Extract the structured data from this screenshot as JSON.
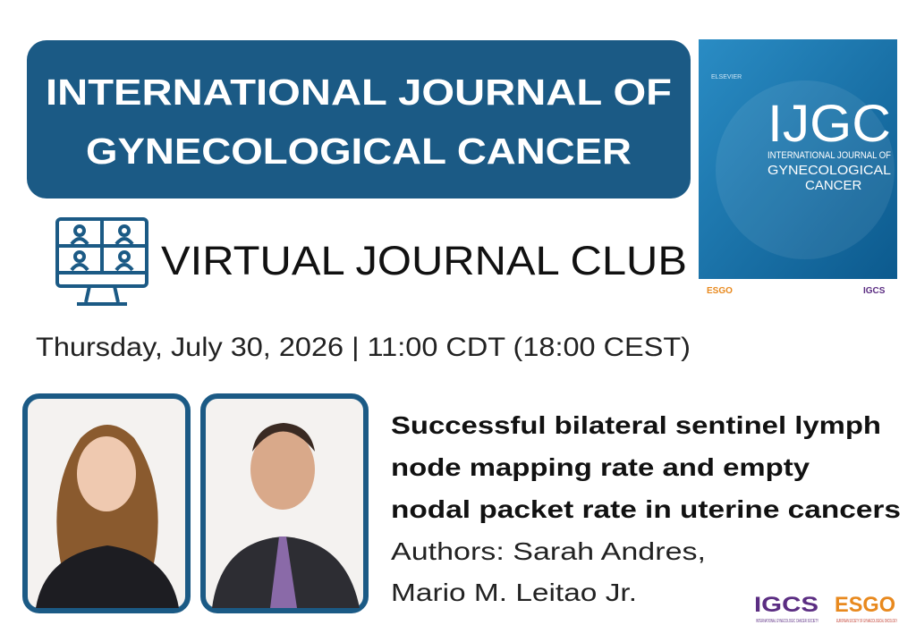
{
  "header": {
    "title_lines": [
      "INTERNATIONAL JOURNAL OF",
      "GYNECOLOGICAL CANCER"
    ]
  },
  "cover": {
    "publisher": "ELSEVIER",
    "acronym": "IJGC",
    "name_lines": [
      "INTERNATIONAL JOURNAL OF",
      "GYNECOLOGICAL",
      "CANCER"
    ],
    "logos": [
      "ESGO",
      "IGCS"
    ]
  },
  "event": {
    "name": "VIRTUAL JOURNAL CLUB",
    "datetime": "Thursday, July 30, 2026 | 11:00 CDT (18:00 CEST)"
  },
  "paper": {
    "title_lines": [
      "Successful bilateral sentinel lymph",
      "node mapping rate and empty",
      "nodal packet rate in uterine cancers"
    ],
    "author_lines": [
      "Authors: Sarah Andres,",
      "Mario M. Leitao Jr."
    ]
  },
  "logos": [
    {
      "name": "IGCS",
      "subtitle": "INTERNATIONAL GYNECOLOGIC CANCER SOCIETY"
    },
    {
      "name": "ESGO",
      "subtitle": "EUROPEAN SOCIETY OF GYNAECOLOGICAL ONCOLOGY"
    }
  ]
}
